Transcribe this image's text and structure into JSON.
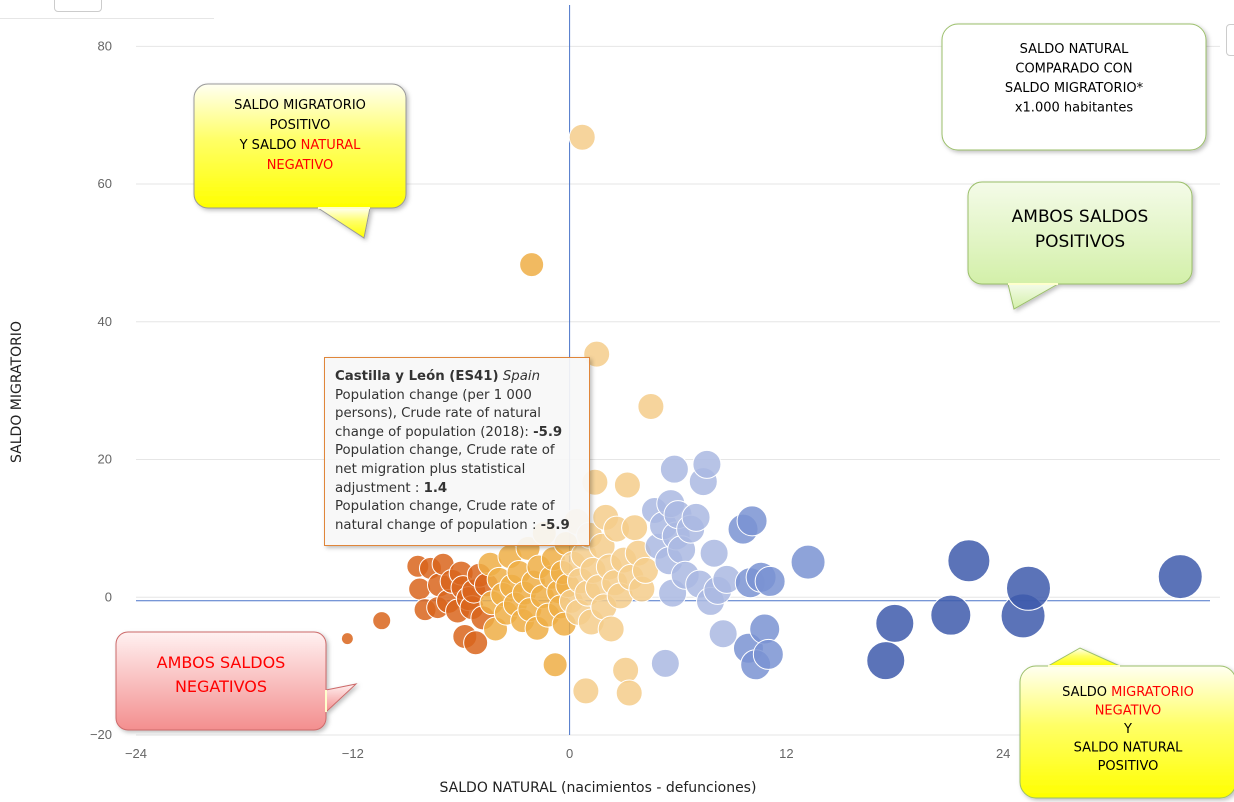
{
  "chart_data": {
    "type": "scatter",
    "title": "",
    "xlabel": "SALDO NATURAL (nacimientos - defunciones)",
    "ylabel": "SALDO MIGRATORIO",
    "xlim": [
      -24,
      36
    ],
    "ylim": [
      -20,
      86
    ],
    "x_ticks": [
      -24,
      -12,
      0,
      12,
      24
    ],
    "y_ticks": [
      -20,
      0,
      20,
      40,
      60,
      80
    ],
    "grid": "horizontal",
    "legend": "none",
    "crosshair": {
      "x": 0,
      "y": -0.5
    },
    "colors": {
      "dark_orange": "#d9651c",
      "orange": "#eeae45",
      "light_orange": "#f4cd8b",
      "light_blue": "#aab8e2",
      "mid_blue": "#7a93d2",
      "dark_blue": "#3e5aab",
      "crosshair": "#4a74c9",
      "grid": "#e6e6e6"
    },
    "points": [
      {
        "x": -12.3,
        "y": -6,
        "size": 6,
        "group": "dark_orange"
      },
      {
        "x": -10.4,
        "y": -3.4,
        "size": 9,
        "group": "dark_orange"
      },
      {
        "x": -8.4,
        "y": 4.5,
        "size": 11,
        "group": "dark_orange"
      },
      {
        "x": -8.3,
        "y": 1.2,
        "size": 11,
        "group": "dark_orange"
      },
      {
        "x": -8,
        "y": -1.8,
        "size": 11,
        "group": "dark_orange"
      },
      {
        "x": -7.7,
        "y": 4.2,
        "size": 11,
        "group": "dark_orange"
      },
      {
        "x": -7.3,
        "y": -1.5,
        "size": 11,
        "group": "dark_orange"
      },
      {
        "x": -7.2,
        "y": 1.8,
        "size": 12,
        "group": "dark_orange"
      },
      {
        "x": -7,
        "y": 4.8,
        "size": 11,
        "group": "dark_orange"
      },
      {
        "x": -6.7,
        "y": -0.6,
        "size": 12,
        "group": "dark_orange"
      },
      {
        "x": -6.5,
        "y": 2.3,
        "size": 12,
        "group": "dark_orange"
      },
      {
        "x": -6.2,
        "y": -2,
        "size": 12,
        "group": "dark_orange"
      },
      {
        "x": -6,
        "y": 3.5,
        "size": 12,
        "group": "dark_orange"
      },
      {
        "x": -5.9,
        "y": 1.4,
        "size": 12,
        "group": "dark_orange"
      },
      {
        "x": -5.8,
        "y": -5.7,
        "size": 12,
        "group": "dark_orange"
      },
      {
        "x": -5.6,
        "y": -0.2,
        "size": 12,
        "group": "dark_orange"
      },
      {
        "x": -5.4,
        "y": -1.5,
        "size": 12,
        "group": "dark_orange"
      },
      {
        "x": -5.3,
        "y": 0.9,
        "size": 12,
        "group": "dark_orange"
      },
      {
        "x": -5.2,
        "y": -6.6,
        "size": 12,
        "group": "dark_orange"
      },
      {
        "x": -5,
        "y": 3.2,
        "size": 12,
        "group": "dark_orange"
      },
      {
        "x": -4.8,
        "y": -3,
        "size": 12,
        "group": "dark_orange"
      },
      {
        "x": -4.6,
        "y": 1.8,
        "size": 12,
        "group": "dark_orange"
      },
      {
        "x": -4.4,
        "y": 4.8,
        "size": 12,
        "group": "orange"
      },
      {
        "x": -4.3,
        "y": -0.8,
        "size": 12,
        "group": "orange"
      },
      {
        "x": -4.1,
        "y": -4.6,
        "size": 12,
        "group": "orange"
      },
      {
        "x": -3.9,
        "y": 2.6,
        "size": 12,
        "group": "orange"
      },
      {
        "x": -3.7,
        "y": 0.4,
        "size": 12,
        "group": "orange"
      },
      {
        "x": -3.5,
        "y": -2.3,
        "size": 12,
        "group": "orange"
      },
      {
        "x": -3.3,
        "y": 5.9,
        "size": 12,
        "group": "orange"
      },
      {
        "x": -3.2,
        "y": 1.6,
        "size": 12,
        "group": "orange"
      },
      {
        "x": -3,
        "y": -1,
        "size": 12,
        "group": "orange"
      },
      {
        "x": -2.8,
        "y": 3.6,
        "size": 12,
        "group": "orange"
      },
      {
        "x": -2.6,
        "y": -3.4,
        "size": 12,
        "group": "orange"
      },
      {
        "x": -2.5,
        "y": 0.6,
        "size": 12,
        "group": "orange"
      },
      {
        "x": -2.3,
        "y": 7.1,
        "size": 12,
        "group": "orange"
      },
      {
        "x": -2.2,
        "y": -1.8,
        "size": 12,
        "group": "orange"
      },
      {
        "x": -2.1,
        "y": 48.3,
        "size": 12,
        "group": "orange"
      },
      {
        "x": -2,
        "y": 2.2,
        "size": 12,
        "group": "orange"
      },
      {
        "x": -1.8,
        "y": -4.5,
        "size": 12,
        "group": "orange"
      },
      {
        "x": -1.7,
        "y": 4.4,
        "size": 12,
        "group": "orange"
      },
      {
        "x": -1.5,
        "y": 0.1,
        "size": 12,
        "group": "orange"
      },
      {
        "x": -1.4,
        "y": 9.3,
        "size": 12,
        "group": "orange"
      },
      {
        "x": -1.2,
        "y": -2.6,
        "size": 12,
        "group": "orange"
      },
      {
        "x": -1,
        "y": 2.9,
        "size": 12,
        "group": "orange"
      },
      {
        "x": -0.9,
        "y": 5.6,
        "size": 12,
        "group": "orange"
      },
      {
        "x": -0.8,
        "y": -9.8,
        "size": 12,
        "group": "orange"
      },
      {
        "x": -0.6,
        "y": 0.8,
        "size": 12,
        "group": "orange"
      },
      {
        "x": -0.5,
        "y": -1.4,
        "size": 12,
        "group": "orange"
      },
      {
        "x": -0.4,
        "y": 3.6,
        "size": 12,
        "group": "orange"
      },
      {
        "x": -0.3,
        "y": -3.9,
        "size": 12,
        "group": "orange"
      },
      {
        "x": -0.2,
        "y": 7.8,
        "size": 12,
        "group": "orange"
      },
      {
        "x": -0.1,
        "y": 1.7,
        "size": 12,
        "group": "orange"
      },
      {
        "x": 0.1,
        "y": -0.6,
        "size": 12,
        "group": "light_orange"
      },
      {
        "x": 0.2,
        "y": 4.8,
        "size": 13,
        "group": "light_orange"
      },
      {
        "x": 0.4,
        "y": 11,
        "size": 13,
        "group": "light_orange"
      },
      {
        "x": 0.5,
        "y": -2.2,
        "size": 13,
        "group": "light_orange"
      },
      {
        "x": 0.6,
        "y": 2.4,
        "size": 13,
        "group": "light_orange"
      },
      {
        "x": 0.7,
        "y": 66.8,
        "size": 13,
        "group": "light_orange"
      },
      {
        "x": 0.8,
        "y": 6.1,
        "size": 13,
        "group": "light_orange"
      },
      {
        "x": 0.9,
        "y": -13.6,
        "size": 13,
        "group": "light_orange"
      },
      {
        "x": 1,
        "y": 0.6,
        "size": 13,
        "group": "light_orange"
      },
      {
        "x": 1.1,
        "y": 9,
        "size": 13,
        "group": "light_orange"
      },
      {
        "x": 1.2,
        "y": -3.6,
        "size": 13,
        "group": "light_orange"
      },
      {
        "x": 1.3,
        "y": 3.9,
        "size": 13,
        "group": "light_orange"
      },
      {
        "x": 1.4,
        "y": 16.7,
        "size": 13,
        "group": "light_orange"
      },
      {
        "x": 1.5,
        "y": 35.3,
        "size": 13,
        "group": "light_orange"
      },
      {
        "x": 1.6,
        "y": 1.4,
        "size": 13,
        "group": "light_orange"
      },
      {
        "x": 1.8,
        "y": 7.4,
        "size": 13,
        "group": "light_orange"
      },
      {
        "x": 1.9,
        "y": -1.4,
        "size": 13,
        "group": "light_orange"
      },
      {
        "x": 2,
        "y": 11.6,
        "size": 13,
        "group": "light_orange"
      },
      {
        "x": 2.2,
        "y": 4.4,
        "size": 13,
        "group": "light_orange"
      },
      {
        "x": 2.3,
        "y": -4.6,
        "size": 13,
        "group": "light_orange"
      },
      {
        "x": 2.5,
        "y": 2.1,
        "size": 13,
        "group": "light_orange"
      },
      {
        "x": 2.6,
        "y": 9.9,
        "size": 13,
        "group": "light_orange"
      },
      {
        "x": 2.8,
        "y": 0.2,
        "size": 13,
        "group": "light_orange"
      },
      {
        "x": 3,
        "y": 5.4,
        "size": 13,
        "group": "light_orange"
      },
      {
        "x": 3.1,
        "y": -10.6,
        "size": 13,
        "group": "light_orange"
      },
      {
        "x": 3.2,
        "y": 16.3,
        "size": 13,
        "group": "light_orange"
      },
      {
        "x": 3.3,
        "y": -13.9,
        "size": 13,
        "group": "light_orange"
      },
      {
        "x": 3.4,
        "y": 2.9,
        "size": 13,
        "group": "light_orange"
      },
      {
        "x": 3.6,
        "y": 10.1,
        "size": 13,
        "group": "light_orange"
      },
      {
        "x": 3.8,
        "y": 6.4,
        "size": 13,
        "group": "light_orange"
      },
      {
        "x": 4,
        "y": 1.2,
        "size": 13,
        "group": "light_orange"
      },
      {
        "x": 4.2,
        "y": 3.9,
        "size": 13,
        "group": "light_orange"
      },
      {
        "x": 4.5,
        "y": 27.7,
        "size": 13,
        "group": "light_orange"
      },
      {
        "x": 4.7,
        "y": 12.6,
        "size": 13,
        "group": "light_blue"
      },
      {
        "x": 4.9,
        "y": 7.4,
        "size": 13,
        "group": "light_blue"
      },
      {
        "x": 5.2,
        "y": 10.4,
        "size": 14,
        "group": "light_blue"
      },
      {
        "x": 5.3,
        "y": -9.6,
        "size": 14,
        "group": "light_blue"
      },
      {
        "x": 5.5,
        "y": 5.3,
        "size": 14,
        "group": "light_blue"
      },
      {
        "x": 5.6,
        "y": 13.6,
        "size": 14,
        "group": "light_blue"
      },
      {
        "x": 5.7,
        "y": 0.6,
        "size": 14,
        "group": "light_blue"
      },
      {
        "x": 5.8,
        "y": 18.6,
        "size": 14,
        "group": "light_blue"
      },
      {
        "x": 5.9,
        "y": 8.9,
        "size": 14,
        "group": "light_blue"
      },
      {
        "x": 6,
        "y": 12,
        "size": 14,
        "group": "light_blue"
      },
      {
        "x": 6.2,
        "y": 6.9,
        "size": 14,
        "group": "light_blue"
      },
      {
        "x": 6.4,
        "y": 3.2,
        "size": 14,
        "group": "light_blue"
      },
      {
        "x": 6.7,
        "y": 9.9,
        "size": 14,
        "group": "light_blue"
      },
      {
        "x": 7,
        "y": 11.6,
        "size": 14,
        "group": "light_blue"
      },
      {
        "x": 7.2,
        "y": 1.9,
        "size": 14,
        "group": "light_blue"
      },
      {
        "x": 7.4,
        "y": 16.8,
        "size": 14,
        "group": "light_blue"
      },
      {
        "x": 7.6,
        "y": 19.3,
        "size": 14,
        "group": "light_blue"
      },
      {
        "x": 7.8,
        "y": -0.6,
        "size": 14,
        "group": "light_blue"
      },
      {
        "x": 8,
        "y": 6.4,
        "size": 14,
        "group": "light_blue"
      },
      {
        "x": 8.2,
        "y": 1,
        "size": 14,
        "group": "light_blue"
      },
      {
        "x": 8.5,
        "y": -5.3,
        "size": 14,
        "group": "light_blue"
      },
      {
        "x": 8.7,
        "y": 2.6,
        "size": 14,
        "group": "light_blue"
      },
      {
        "x": 9.6,
        "y": 9.9,
        "size": 15,
        "group": "mid_blue"
      },
      {
        "x": 9.9,
        "y": -7.4,
        "size": 15,
        "group": "mid_blue"
      },
      {
        "x": 10.1,
        "y": 11.1,
        "size": 15,
        "group": "mid_blue"
      },
      {
        "x": 10,
        "y": 2.1,
        "size": 15,
        "group": "mid_blue"
      },
      {
        "x": 10.3,
        "y": -9.8,
        "size": 15,
        "group": "mid_blue"
      },
      {
        "x": 10.6,
        "y": 2.9,
        "size": 15,
        "group": "mid_blue"
      },
      {
        "x": 10.8,
        "y": -4.6,
        "size": 15,
        "group": "mid_blue"
      },
      {
        "x": 11,
        "y": -8.3,
        "size": 15,
        "group": "mid_blue"
      },
      {
        "x": 11.1,
        "y": 2.3,
        "size": 15,
        "group": "mid_blue"
      },
      {
        "x": 13.2,
        "y": 5.1,
        "size": 17,
        "group": "mid_blue"
      },
      {
        "x": 17.5,
        "y": -9.2,
        "size": 19,
        "group": "dark_blue"
      },
      {
        "x": 18,
        "y": -3.8,
        "size": 19,
        "group": "dark_blue"
      },
      {
        "x": 21.1,
        "y": -2.6,
        "size": 20,
        "group": "dark_blue"
      },
      {
        "x": 22.1,
        "y": 5.3,
        "size": 21,
        "group": "dark_blue"
      },
      {
        "x": 25.1,
        "y": -2.7,
        "size": 22,
        "group": "dark_blue"
      },
      {
        "x": 25.4,
        "y": 1.3,
        "size": 22,
        "group": "dark_blue"
      },
      {
        "x": 33.8,
        "y": 3,
        "size": 22,
        "group": "dark_blue"
      }
    ],
    "annotations": [
      {
        "id": "nw",
        "lines": [
          [
            {
              "t": "SALDO MIGRATORIO"
            }
          ],
          [
            {
              "t": "POSITIVO"
            }
          ],
          [
            {
              "t": "Y SALDO "
            },
            {
              "t": "NATURAL",
              "red": true
            }
          ],
          [
            {
              "t": "NEGATIVO",
              "red": true
            }
          ]
        ]
      },
      {
        "id": "info",
        "lines": [
          [
            {
              "t": "SALDO NATURAL"
            }
          ],
          [
            {
              "t": "COMPARADO CON"
            }
          ],
          [
            {
              "t": "SALDO MIGRATORIO*"
            }
          ],
          [
            {
              "t": "x1.000 habitantes"
            }
          ]
        ]
      },
      {
        "id": "ne",
        "lines": [
          [
            {
              "t": "AMBOS SALDOS"
            }
          ],
          [
            {
              "t": "POSITIVOS"
            }
          ]
        ]
      },
      {
        "id": "sw",
        "lines": [
          [
            {
              "t": "AMBOS SALDOS",
              "red": true
            }
          ],
          [
            {
              "t": "NEGATIVOS",
              "red": true
            }
          ]
        ]
      },
      {
        "id": "se",
        "lines": [
          [
            {
              "t": "SALDO "
            },
            {
              "t": "MIGRATORIO",
              "red": true
            }
          ],
          [
            {
              "t": "NEGATIVO",
              "red": true
            }
          ],
          [
            {
              "t": "Y"
            }
          ],
          [
            {
              "t": "SALDO NATURAL"
            }
          ],
          [
            {
              "t": "POSITIVO"
            }
          ]
        ]
      }
    ],
    "tooltip": {
      "region": "Castilla y León (ES41)",
      "country": "Spain",
      "line1": "Population change (per 1 000 persons), Crude rate of natural change of population (2018): ",
      "value1": "-5.9",
      "line2": "Population change, Crude rate of net migration plus statistical adjustment : ",
      "value2": "1.4",
      "line3": "Population change, Crude rate of natural change of population : ",
      "value3": "-5.9"
    }
  }
}
